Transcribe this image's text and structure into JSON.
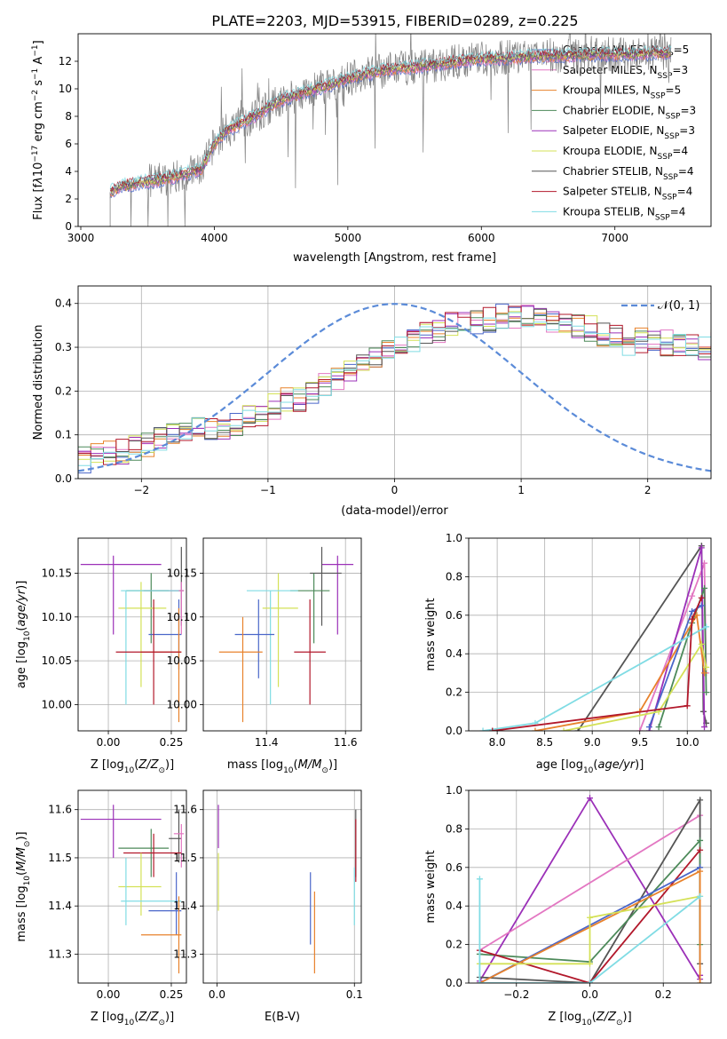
{
  "title": "PLATE=2203, MJD=53915, FIBERID=0289, z=0.225",
  "legend_entries": [
    {
      "label": "Chabrier MILES, N",
      "sub": "SSP",
      "suffix": "=5",
      "color": "#4a66c9"
    },
    {
      "label": "Salpeter MILES, N",
      "sub": "SSP",
      "suffix": "=3",
      "color": "#e377c2"
    },
    {
      "label": "Kroupa MILES, N",
      "sub": "SSP",
      "suffix": "=5",
      "color": "#e8822b"
    },
    {
      "label": "Chabrier ELODIE, N",
      "sub": "SSP",
      "suffix": "=3",
      "color": "#4d8a5a"
    },
    {
      "label": "Salpeter ELODIE, N",
      "sub": "SSP",
      "suffix": "=3",
      "color": "#9b30b8"
    },
    {
      "label": "Kroupa ELODIE, N",
      "sub": "SSP",
      "suffix": "=4",
      "color": "#d4e157"
    },
    {
      "label": "Chabrier STELIB, N",
      "sub": "SSP",
      "suffix": "=4",
      "color": "#555555"
    },
    {
      "label": "Salpeter STELIB, N",
      "sub": "SSP",
      "suffix": "=4",
      "color": "#b2182b"
    },
    {
      "label": "Kroupa STELIB, N",
      "sub": "SSP",
      "suffix": "=4",
      "color": "#80dce4"
    }
  ],
  "chart_data": [
    {
      "id": "spectrum",
      "type": "line",
      "xlabel": "wavelength [Angstrom, rest frame]",
      "ylabel": "Flux [f",
      "ylabel_full": "Flux [fλ10⁻¹⁷ erg cm⁻² s⁻¹ A⁻¹]",
      "xlim": [
        2980,
        7720
      ],
      "ylim": [
        0,
        14
      ],
      "xticks": [
        "3000",
        "4000",
        "5000",
        "6000",
        "7000"
      ],
      "yticks": [
        "0",
        "2",
        "4",
        "6",
        "8",
        "10",
        "12"
      ],
      "data_color": "#808080",
      "model_envelope": {
        "x": [
          3220,
          3300,
          3450,
          3550,
          3700,
          3800,
          3900,
          3950,
          4000,
          4100,
          4200,
          4300,
          4400,
          4500,
          4700,
          4900,
          5100,
          5300,
          5500,
          5700,
          5900,
          6100,
          6300,
          6500,
          6700,
          6900,
          7100,
          7300,
          7420
        ],
        "y": [
          2.5,
          2.9,
          3.2,
          3.3,
          3.6,
          3.9,
          4.1,
          5.0,
          6.0,
          7.0,
          7.5,
          8.0,
          8.6,
          9.2,
          9.8,
          10.4,
          11.0,
          11.4,
          11.6,
          11.8,
          12.1,
          12.2,
          12.3,
          12.4,
          12.4,
          12.5,
          12.5,
          12.6,
          12.6
        ]
      }
    },
    {
      "id": "residual-histogram",
      "type": "histogram",
      "xlabel": "(data-model)/error",
      "ylabel": "Normed distribution",
      "xlim": [
        -2.5,
        2.5
      ],
      "ylim": [
        0,
        0.44
      ],
      "xticks": [
        "−2",
        "−1",
        "0",
        "1",
        "2"
      ],
      "yticks": [
        "0.0",
        "0.1",
        "0.2",
        "0.3",
        "0.4"
      ],
      "gaussian_label": "𝒩(0, 1)",
      "gaussian_color": "#5b8bd8",
      "bin_width": 0.1,
      "bin_start": -2.5,
      "base_profile": [
        0.043,
        0.05,
        0.057,
        0.063,
        0.068,
        0.078,
        0.088,
        0.1,
        0.112,
        0.118,
        0.113,
        0.112,
        0.125,
        0.14,
        0.15,
        0.165,
        0.18,
        0.18,
        0.196,
        0.214,
        0.226,
        0.24,
        0.262,
        0.28,
        0.296,
        0.313,
        0.318,
        0.33,
        0.34,
        0.35,
        0.356,
        0.36,
        0.363,
        0.369,
        0.366,
        0.377,
        0.37,
        0.36,
        0.358,
        0.348,
        0.342,
        0.33,
        0.322,
        0.3,
        0.316,
        0.32,
        0.31,
        0.31,
        0.3,
        0.3,
        0.317,
        0.318,
        0.31,
        0.293,
        0.282,
        0.268,
        0.257,
        0.245,
        0.238,
        0.225,
        0.212,
        0.2,
        0.185,
        0.175,
        0.168,
        0.16,
        0.15,
        0.14,
        0.13,
        0.124,
        0.12,
        0.11,
        0.1,
        0.09,
        0.082,
        0.075,
        0.07,
        0.064,
        0.06,
        0.058,
        0.055,
        0.052,
        0.05,
        0.05,
        0.05,
        0.05,
        0.05,
        0.05,
        0.05,
        0.05
      ]
    },
    {
      "id": "age-vs-Z",
      "type": "errorbar",
      "xlabel": "Z [log",
      "xlabel_full": "Z [log₁₀(Z/Z⊙)]",
      "ylabel": "age  [log",
      "ylabel_full": "age  [log₁₀(age/yr)]",
      "xlim": [
        -0.12,
        0.31
      ],
      "ylim": [
        9.97,
        10.19
      ],
      "xticks": [
        "0.00",
        "0.25"
      ],
      "xtick_values": [
        0.0,
        0.25
      ],
      "yticks": [
        "10.00",
        "10.05",
        "10.10",
        "10.15"
      ],
      "ytick_values": [
        10.0,
        10.05,
        10.1,
        10.15
      ],
      "points": [
        {
          "x": 0.17,
          "y": 10.13,
          "x0": 0.07,
          "x1": 0.28,
          "y0": 10.07,
          "y1": 10.15,
          "color": "#4d8a5a"
        },
        {
          "x": 0.29,
          "y": 10.13,
          "x0": 0.14,
          "x1": 0.3,
          "y0": 10.09,
          "y1": 10.18,
          "color": "#555555"
        },
        {
          "x": 0.29,
          "y": 10.13,
          "x0": 0.24,
          "x1": 0.3,
          "y0": 10.08,
          "y1": 10.14,
          "color": "#e377c2"
        },
        {
          "x": 0.02,
          "y": 10.16,
          "x0": -0.11,
          "x1": 0.21,
          "y0": 10.08,
          "y1": 10.17,
          "color": "#9b30b8"
        },
        {
          "x": 0.13,
          "y": 10.11,
          "x0": 0.04,
          "x1": 0.23,
          "y0": 10.02,
          "y1": 10.14,
          "color": "#d4e157"
        },
        {
          "x": 0.07,
          "y": 10.13,
          "x0": 0.05,
          "x1": 0.28,
          "y0": 10.0,
          "y1": 10.13,
          "color": "#80dce4"
        },
        {
          "x": 0.28,
          "y": 10.08,
          "x0": 0.16,
          "x1": 0.29,
          "y0": 10.04,
          "y1": 10.12,
          "color": "#4a66c9"
        },
        {
          "x": 0.28,
          "y": 10.06,
          "x0": 0.13,
          "x1": 0.29,
          "y0": 9.98,
          "y1": 10.11,
          "color": "#e8822b"
        },
        {
          "x": 0.18,
          "y": 10.06,
          "x0": 0.03,
          "x1": 0.29,
          "y0": 10.0,
          "y1": 10.12,
          "color": "#b2182b"
        }
      ]
    },
    {
      "id": "age-vs-mass",
      "type": "errorbar",
      "xlabel": "mass [log",
      "xlabel_full": "mass [log₁₀(M/M⊙)]",
      "xlim": [
        11.24,
        11.64
      ],
      "ylim": [
        9.97,
        10.19
      ],
      "xticks": [
        "11.4",
        "11.6"
      ],
      "xtick_values": [
        11.4,
        11.6
      ],
      "yticks": [
        "10.00",
        "10.05",
        "10.10",
        "10.15"
      ],
      "ytick_values": [
        10.0,
        10.05,
        10.1,
        10.15
      ],
      "points": [
        {
          "x": 11.58,
          "y": 10.16,
          "x0": 11.54,
          "x1": 11.62,
          "y0": 10.08,
          "y1": 10.17,
          "color": "#9b30b8"
        },
        {
          "x": 11.54,
          "y": 10.15,
          "x0": 11.51,
          "x1": 11.59,
          "y0": 10.09,
          "y1": 10.18,
          "color": "#555555"
        },
        {
          "x": 11.52,
          "y": 10.13,
          "x0": 11.46,
          "x1": 11.56,
          "y0": 10.07,
          "y1": 10.15,
          "color": "#4d8a5a"
        },
        {
          "x": 11.43,
          "y": 10.11,
          "x0": 11.39,
          "x1": 11.48,
          "y0": 10.02,
          "y1": 10.15,
          "color": "#d4e157"
        },
        {
          "x": 11.41,
          "y": 10.13,
          "x0": 11.35,
          "x1": 11.48,
          "y0": 10.0,
          "y1": 10.13,
          "color": "#80dce4"
        },
        {
          "x": 11.38,
          "y": 10.08,
          "x0": 11.32,
          "x1": 11.42,
          "y0": 10.03,
          "y1": 10.12,
          "color": "#4a66c9"
        },
        {
          "x": 11.34,
          "y": 10.06,
          "x0": 11.28,
          "x1": 11.39,
          "y0": 9.98,
          "y1": 10.1,
          "color": "#e8822b"
        },
        {
          "x": 11.51,
          "y": 10.06,
          "x0": 11.47,
          "x1": 11.55,
          "y0": 10.0,
          "y1": 10.12,
          "color": "#b2182b"
        }
      ]
    },
    {
      "id": "mass-weight-vs-age",
      "type": "line",
      "xlabel": "age  [log",
      "xlabel_full": "age  [log₁₀(age/yr)]",
      "ylabel": "mass weight",
      "xlim": [
        7.7,
        10.25
      ],
      "ylim": [
        0,
        1
      ],
      "xticks": [
        "8.0",
        "8.5",
        "9.0",
        "9.5",
        "10.0"
      ],
      "xtick_values": [
        8.0,
        8.5,
        9.0,
        9.5,
        10.0
      ],
      "yticks": [
        "0.0",
        "0.2",
        "0.4",
        "0.6",
        "0.8",
        "1.0"
      ],
      "ytick_values": [
        0,
        0.2,
        0.4,
        0.6,
        0.8,
        1.0
      ],
      "series": [
        {
          "color": "#555555",
          "x": [
            8.85,
            10.15,
            10.17,
            10.2
          ],
          "y": [
            0.0,
            0.96,
            0.1,
            0.04
          ]
        },
        {
          "color": "#e377c2",
          "x": [
            9.5,
            10.05,
            10.18,
            10.2
          ],
          "y": [
            0.0,
            0.7,
            0.87,
            0.3
          ]
        },
        {
          "color": "#9b30b8",
          "x": [
            9.6,
            10.15,
            10.18
          ],
          "y": [
            0.0,
            0.95,
            0.02
          ]
        },
        {
          "color": "#4d8a5a",
          "x": [
            9.7,
            10.05,
            10.18,
            10.2
          ],
          "y": [
            0.02,
            0.56,
            0.74,
            0.2
          ]
        },
        {
          "color": "#e8822b",
          "x": [
            8.4,
            9.5,
            10.1,
            10.18
          ],
          "y": [
            0.0,
            0.1,
            0.6,
            0.3
          ]
        },
        {
          "color": "#4a66c9",
          "x": [
            9.6,
            10.05,
            10.15
          ],
          "y": [
            0.02,
            0.62,
            0.65
          ]
        },
        {
          "color": "#d4e157",
          "x": [
            8.7,
            9.7,
            10.15,
            10.2
          ],
          "y": [
            0.0,
            0.1,
            0.45,
            0.33
          ]
        },
        {
          "color": "#80dce4",
          "x": [
            7.85,
            8.4,
            10.2
          ],
          "y": [
            0.0,
            0.04,
            0.54
          ]
        },
        {
          "color": "#b2182b",
          "x": [
            7.95,
            10.0,
            10.05,
            10.15
          ],
          "y": [
            0.0,
            0.13,
            0.58,
            0.69
          ]
        }
      ]
    },
    {
      "id": "mass-vs-Z",
      "type": "errorbar",
      "xlabel": "Z [log",
      "xlabel_full": "Z [log₁₀(Z/Z⊙)]",
      "ylabel": "mass [log",
      "ylabel_full": "mass [log₁₀(M/M⊙)]",
      "xlim": [
        -0.12,
        0.31
      ],
      "ylim": [
        11.24,
        11.64
      ],
      "xticks": [
        "0.00",
        "0.25"
      ],
      "xtick_values": [
        0.0,
        0.25
      ],
      "yticks": [
        "11.3",
        "11.4",
        "11.5",
        "11.6"
      ],
      "ytick_values": [
        11.3,
        11.4,
        11.5,
        11.6
      ],
      "points": [
        {
          "x": 0.02,
          "y": 11.58,
          "x0": -0.11,
          "x1": 0.21,
          "y0": 11.5,
          "y1": 11.61,
          "color": "#9b30b8"
        },
        {
          "x": 0.17,
          "y": 11.52,
          "x0": 0.04,
          "x1": 0.24,
          "y0": 11.46,
          "y1": 11.56,
          "color": "#4d8a5a"
        },
        {
          "x": 0.28,
          "y": 11.54,
          "x0": 0.24,
          "x1": 0.29,
          "y0": 11.49,
          "y1": 11.6,
          "color": "#555555"
        },
        {
          "x": 0.29,
          "y": 11.55,
          "x0": 0.26,
          "x1": 0.3,
          "y0": 11.48,
          "y1": 11.57,
          "color": "#e377c2"
        },
        {
          "x": 0.18,
          "y": 11.51,
          "x0": 0.06,
          "x1": 0.29,
          "y0": 11.46,
          "y1": 11.55,
          "color": "#b2182b"
        },
        {
          "x": 0.13,
          "y": 11.44,
          "x0": 0.04,
          "x1": 0.21,
          "y0": 11.38,
          "y1": 11.51,
          "color": "#d4e157"
        },
        {
          "x": 0.07,
          "y": 11.41,
          "x0": 0.05,
          "x1": 0.29,
          "y0": 11.36,
          "y1": 11.5,
          "color": "#80dce4"
        },
        {
          "x": 0.27,
          "y": 11.39,
          "x0": 0.16,
          "x1": 0.29,
          "y0": 11.34,
          "y1": 11.47,
          "color": "#4a66c9"
        },
        {
          "x": 0.28,
          "y": 11.34,
          "x0": 0.13,
          "x1": 0.29,
          "y0": 11.26,
          "y1": 11.42,
          "color": "#e8822b"
        }
      ]
    },
    {
      "id": "mass-vs-EBV",
      "type": "errorbar",
      "xlabel": "E(B-V)",
      "xlim": [
        -0.01,
        0.105
      ],
      "ylim": [
        11.24,
        11.64
      ],
      "xticks": [
        "0.0",
        "0.1"
      ],
      "xtick_values": [
        0.0,
        0.1
      ],
      "yticks": [
        "11.3",
        "11.4",
        "11.5",
        "11.6"
      ],
      "ytick_values": [
        11.3,
        11.4,
        11.5,
        11.6
      ],
      "points": [
        {
          "x": 0.001,
          "y": 11.58,
          "x0": 0.001,
          "x1": 0.001,
          "y0": 11.52,
          "y1": 11.61,
          "color": "#9b30b8"
        },
        {
          "x": 0.001,
          "y": 11.44,
          "x0": 0.001,
          "x1": 0.001,
          "y0": 11.39,
          "y1": 11.51,
          "color": "#d4e157"
        },
        {
          "x": 0.068,
          "y": 11.39,
          "x0": 0.068,
          "x1": 0.068,
          "y0": 11.32,
          "y1": 11.47,
          "color": "#4a66c9"
        },
        {
          "x": 0.071,
          "y": 11.34,
          "x0": 0.071,
          "x1": 0.071,
          "y0": 11.26,
          "y1": 11.43,
          "color": "#e8822b"
        },
        {
          "x": 0.101,
          "y": 11.52,
          "x0": 0.101,
          "x1": 0.101,
          "y0": 11.46,
          "y1": 11.6,
          "color": "#555555"
        },
        {
          "x": 0.101,
          "y": 11.51,
          "x0": 0.101,
          "x1": 0.101,
          "y0": 11.45,
          "y1": 11.58,
          "color": "#b2182b"
        },
        {
          "x": 0.1,
          "y": 11.41,
          "x0": 0.1,
          "x1": 0.1,
          "y0": 11.36,
          "y1": 11.48,
          "color": "#80dce4"
        }
      ]
    },
    {
      "id": "mass-weight-vs-Z",
      "type": "line",
      "xlabel": "Z [log",
      "xlabel_full": "Z [log₁₀(Z/Z⊙)]",
      "ylabel": "mass weight",
      "xlim": [
        -0.33,
        0.33
      ],
      "ylim": [
        0,
        1
      ],
      "xticks": [
        "−0.2",
        "0.0",
        "0.2"
      ],
      "xtick_values": [
        -0.2,
        0.0,
        0.2
      ],
      "yticks": [
        "0.0",
        "0.2",
        "0.4",
        "0.6",
        "0.8",
        "1.0"
      ],
      "ytick_values": [
        0,
        0.2,
        0.4,
        0.6,
        0.8,
        1.0
      ],
      "series": [
        {
          "color": "#9b30b8",
          "x": [
            -0.3,
            0.0,
            0.3,
            0.3
          ],
          "y": [
            0.01,
            0.96,
            0.02,
            0.04
          ]
        },
        {
          "color": "#e377c2",
          "x": [
            -0.3,
            0.3
          ],
          "y": [
            0.17,
            0.87
          ]
        },
        {
          "color": "#555555",
          "x": [
            -0.3,
            0.0,
            0.3,
            0.3
          ],
          "y": [
            0.03,
            0.0,
            0.95,
            0.1
          ]
        },
        {
          "color": "#4d8a5a",
          "x": [
            -0.3,
            0.0,
            0.3,
            0.3
          ],
          "y": [
            0.15,
            0.11,
            0.74,
            0.2
          ]
        },
        {
          "color": "#b2182b",
          "x": [
            -0.3,
            0.0,
            0.3
          ],
          "y": [
            0.17,
            0.0,
            0.69
          ]
        },
        {
          "color": "#4a66c9",
          "x": [
            -0.3,
            0.3
          ],
          "y": [
            0.0,
            0.6
          ]
        },
        {
          "color": "#e8822b",
          "x": [
            -0.3,
            0.3,
            0.3
          ],
          "y": [
            0.0,
            0.58,
            0.0
          ]
        },
        {
          "color": "#d4e157",
          "x": [
            -0.3,
            0.0,
            0.0,
            0.3
          ],
          "y": [
            0.1,
            0.1,
            0.34,
            0.45
          ]
        },
        {
          "color": "#80dce4",
          "x": [
            -0.3,
            -0.3,
            0.0,
            0.3
          ],
          "y": [
            0.54,
            0.0,
            0.0,
            0.45
          ]
        }
      ]
    }
  ]
}
